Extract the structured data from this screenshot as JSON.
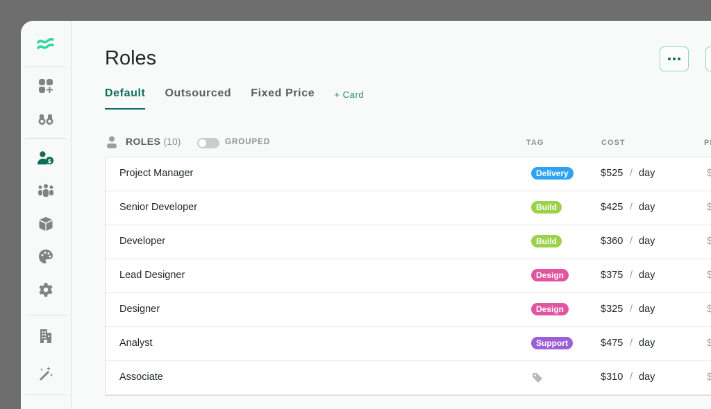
{
  "sidebar": {
    "items": [
      {
        "icon": "wave-logo-icon",
        "active": false
      },
      {
        "icon": "dashboard-add-icon"
      },
      {
        "icon": "binoculars-icon"
      },
      {
        "icon": "user-dollar-icon",
        "active": true
      },
      {
        "icon": "team-icon"
      },
      {
        "icon": "cube-icon"
      },
      {
        "icon": "palette-icon"
      },
      {
        "icon": "gear-icon"
      },
      {
        "icon": "building-icon"
      },
      {
        "icon": "magic-wand-icon"
      }
    ]
  },
  "header": {
    "title": "Roles",
    "more_icon": "ellipsis-icon"
  },
  "tabs": [
    {
      "label": "Default",
      "active": true
    },
    {
      "label": "Outsourced"
    },
    {
      "label": "Fixed Price"
    },
    {
      "label": "+ Card"
    }
  ],
  "table": {
    "title": "ROLES",
    "count": "(10)",
    "toggle_label": "GROUPED",
    "grouped": false,
    "columns": {
      "tag": "TAG",
      "cost": "COST",
      "price": "PRICE"
    },
    "rows": [
      {
        "name": "Project Manager",
        "tag": "Delivery",
        "tag_color": "#2ea3f2",
        "cost": "$525",
        "unit": "day",
        "price": "$"
      },
      {
        "name": "Senior Developer",
        "tag": "Build",
        "tag_color": "#9bd24a",
        "cost": "$425",
        "unit": "day",
        "price": "$"
      },
      {
        "name": "Developer",
        "tag": "Build",
        "tag_color": "#9bd24a",
        "cost": "$360",
        "unit": "day",
        "price": "$"
      },
      {
        "name": "Lead Designer",
        "tag": "Design",
        "tag_color": "#e0559f",
        "cost": "$375",
        "unit": "day",
        "price": "$"
      },
      {
        "name": "Designer",
        "tag": "Design",
        "tag_color": "#e0559f",
        "cost": "$325",
        "unit": "day",
        "price": "$"
      },
      {
        "name": "Analyst",
        "tag": "Support",
        "tag_color": "#9b5fd6",
        "cost": "$475",
        "unit": "day",
        "price": "$"
      },
      {
        "name": "Associate",
        "tag": "",
        "tag_color": "",
        "cost": "$310",
        "unit": "day",
        "price": "$"
      }
    ],
    "slash": "/"
  }
}
